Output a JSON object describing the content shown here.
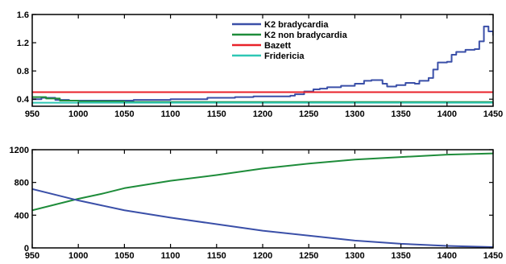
{
  "chart_data": [
    {
      "type": "line",
      "title": "",
      "xlabel": "",
      "ylabel": "",
      "xlim": [
        950,
        1450
      ],
      "ylim": [
        0.3,
        1.6
      ],
      "xticks": [
        950,
        1000,
        1050,
        1100,
        1150,
        1200,
        1250,
        1300,
        1350,
        1400,
        1450
      ],
      "yticks": [
        0.4,
        0.8,
        1.2,
        1.6
      ],
      "ytick_labels": [
        "0.4",
        "0.8",
        "1.2",
        "1.6"
      ],
      "grid": false,
      "legend_placement": "top-center",
      "series": [
        {
          "name": "K2 bradycardia",
          "color": "#3a4fa8",
          "step": true,
          "x": [
            950,
            960,
            975,
            990,
            1000,
            1030,
            1060,
            1100,
            1140,
            1170,
            1190,
            1210,
            1230,
            1235,
            1245,
            1255,
            1262,
            1270,
            1285,
            1300,
            1310,
            1318,
            1330,
            1335,
            1345,
            1355,
            1365,
            1370,
            1380,
            1385,
            1390,
            1400,
            1405,
            1410,
            1420,
            1430,
            1435,
            1440,
            1445,
            1450
          ],
          "y": [
            0.4,
            0.42,
            0.39,
            0.38,
            0.38,
            0.38,
            0.39,
            0.4,
            0.42,
            0.43,
            0.44,
            0.44,
            0.45,
            0.47,
            0.51,
            0.54,
            0.55,
            0.57,
            0.59,
            0.62,
            0.66,
            0.67,
            0.62,
            0.58,
            0.6,
            0.63,
            0.62,
            0.66,
            0.7,
            0.82,
            0.92,
            0.93,
            1.03,
            1.07,
            1.1,
            1.11,
            1.22,
            1.43,
            1.36,
            1.3
          ]
        },
        {
          "name": "K2 non bradycardia",
          "color": "#1e8c3a",
          "step": true,
          "x": [
            950,
            965,
            980,
            1000,
            1050,
            1100,
            1150,
            1200,
            1250,
            1300,
            1350,
            1400,
            1450
          ],
          "y": [
            0.43,
            0.41,
            0.38,
            0.37,
            0.36,
            0.36,
            0.36,
            0.36,
            0.36,
            0.36,
            0.36,
            0.36,
            0.36
          ]
        },
        {
          "name": "Bazett",
          "color": "#e8222a",
          "step": false,
          "x": [
            950,
            1450
          ],
          "y": [
            0.5,
            0.5
          ]
        },
        {
          "name": "Fridericia",
          "color": "#2ec7b5",
          "step": false,
          "x": [
            950,
            1450
          ],
          "y": [
            0.35,
            0.35
          ]
        }
      ]
    },
    {
      "type": "line",
      "title": "",
      "xlabel": "",
      "ylabel": "",
      "xlim": [
        950,
        1450
      ],
      "ylim": [
        0,
        1200
      ],
      "xticks": [
        950,
        1000,
        1050,
        1100,
        1150,
        1200,
        1250,
        1300,
        1350,
        1400,
        1450
      ],
      "yticks": [
        0,
        400,
        800,
        1200
      ],
      "ytick_labels": [
        "0",
        "400",
        "800",
        "1200"
      ],
      "grid": false,
      "series": [
        {
          "name": "",
          "color": "#1e8c3a",
          "step": false,
          "x": [
            950,
            975,
            1000,
            1025,
            1050,
            1100,
            1150,
            1200,
            1250,
            1300,
            1350,
            1400,
            1450
          ],
          "y": [
            460,
            530,
            600,
            660,
            730,
            820,
            890,
            970,
            1030,
            1080,
            1110,
            1140,
            1155
          ]
        },
        {
          "name": "",
          "color": "#3a4fa8",
          "step": false,
          "x": [
            950,
            975,
            1000,
            1025,
            1050,
            1100,
            1150,
            1200,
            1250,
            1300,
            1350,
            1400,
            1450
          ],
          "y": [
            720,
            650,
            580,
            520,
            460,
            370,
            290,
            210,
            150,
            90,
            50,
            25,
            10
          ]
        }
      ]
    }
  ]
}
